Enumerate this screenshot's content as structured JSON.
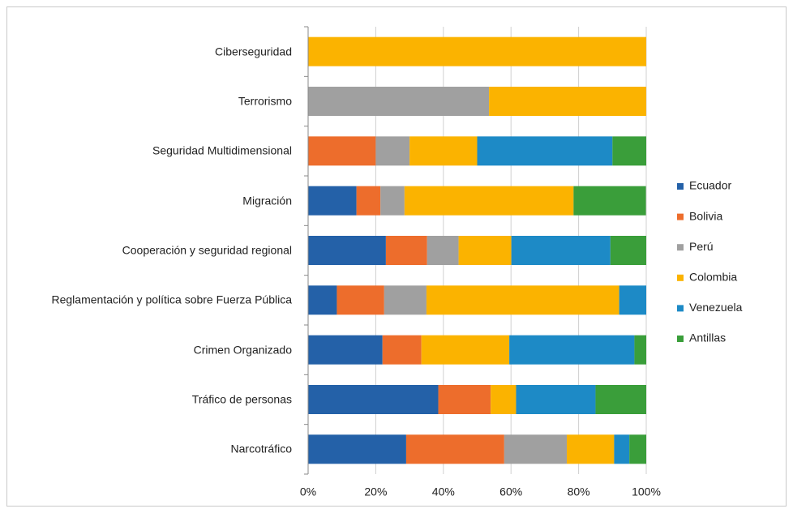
{
  "chart_data": {
    "type": "stacked_barh",
    "categories": [
      "Ciberseguridad",
      "Terrorismo",
      "Seguridad Multidimensional",
      "Migración",
      "Cooperación y seguridad regional",
      "Reglamentación y política sobre Fuerza Pública",
      "Crimen Organizado",
      "Tráfico de personas",
      "Narcotráfico"
    ],
    "series": [
      {
        "name": "Ecuador",
        "color": "#2461a8",
        "values": [
          0,
          0,
          0,
          14.3,
          23,
          8.5,
          22,
          38.5,
          29
        ]
      },
      {
        "name": "Bolivia",
        "color": "#ed6d2c",
        "values": [
          0,
          0,
          20,
          7.1,
          12.2,
          14,
          11.5,
          15.5,
          29
        ]
      },
      {
        "name": "Perú",
        "color": "#a0a0a0",
        "values": [
          0,
          53.5,
          10,
          7.1,
          9.3,
          12.5,
          0,
          0,
          18.5
        ]
      },
      {
        "name": "Colombia",
        "color": "#fbb300",
        "values": [
          100,
          46.5,
          20,
          50,
          15.6,
          57,
          26,
          7.5,
          14
        ]
      },
      {
        "name": "Venezuela",
        "color": "#1d8ac6",
        "values": [
          0,
          0,
          40,
          0,
          29.3,
          8,
          37,
          23.5,
          4.5
        ]
      },
      {
        "name": "Antillas",
        "color": "#3a9e3a",
        "values": [
          0,
          0,
          10,
          21.4,
          10.6,
          0,
          3.5,
          15,
          5
        ]
      }
    ],
    "xlim": [
      0,
      100
    ],
    "xticks": [
      {
        "value": 0,
        "label": "0%"
      },
      {
        "value": 20,
        "label": "20%"
      },
      {
        "value": 40,
        "label": "40%"
      },
      {
        "value": 60,
        "label": "60%"
      },
      {
        "value": 80,
        "label": "80%"
      },
      {
        "value": 100,
        "label": "100%"
      }
    ],
    "grid": true,
    "legend": "right"
  }
}
